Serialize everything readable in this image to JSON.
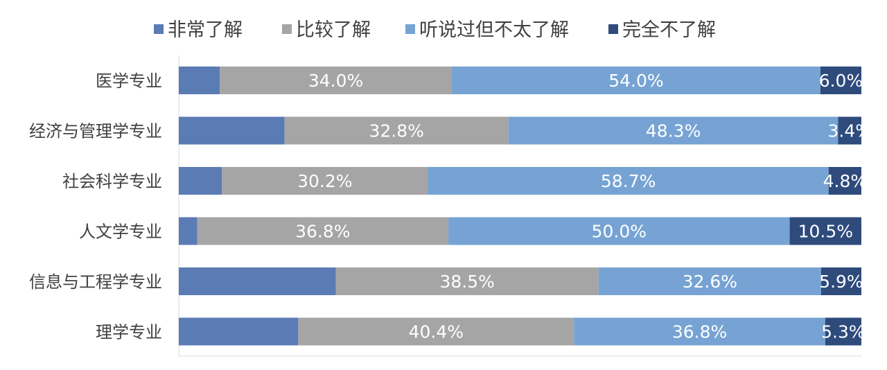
{
  "chart_data": {
    "type": "bar",
    "orientation": "horizontal",
    "stacked": true,
    "percent_stacked": true,
    "legend_position": "top",
    "grid": false,
    "categories": [
      "医学专业",
      "经济与管理学专业",
      "社会科学专业",
      "人文学专业",
      "信息与工程学专业",
      "理学专业"
    ],
    "series": [
      {
        "name": "非常了解",
        "color": "#5b7bb5",
        "values": [
          6.0,
          15.5,
          6.3,
          2.7,
          23.0,
          17.5
        ],
        "labels": [
          "",
          "",
          "",
          "",
          "",
          ""
        ]
      },
      {
        "name": "比较了解",
        "color": "#a5a5a5",
        "values": [
          34.0,
          32.8,
          30.2,
          36.8,
          38.5,
          40.4
        ],
        "labels": [
          "34.0%",
          "32.8%",
          "30.2%",
          "36.8%",
          "38.5%",
          "40.4%"
        ]
      },
      {
        "name": "听说过但不太了解",
        "color": "#76a3d3",
        "values": [
          54.0,
          48.3,
          58.7,
          50.0,
          32.6,
          36.8
        ],
        "labels": [
          "54.0%",
          "48.3%",
          "58.7%",
          "50.0%",
          "32.6%",
          "36.8%"
        ]
      },
      {
        "name": "完全不了解",
        "color": "#2e4b7c",
        "values": [
          6.0,
          3.4,
          4.8,
          10.5,
          5.9,
          5.3
        ],
        "labels": [
          "6.0%",
          "3.4%",
          "4.8%",
          "10.5%",
          "5.9%",
          "5.3%"
        ]
      }
    ],
    "xlim": [
      0,
      100
    ]
  }
}
